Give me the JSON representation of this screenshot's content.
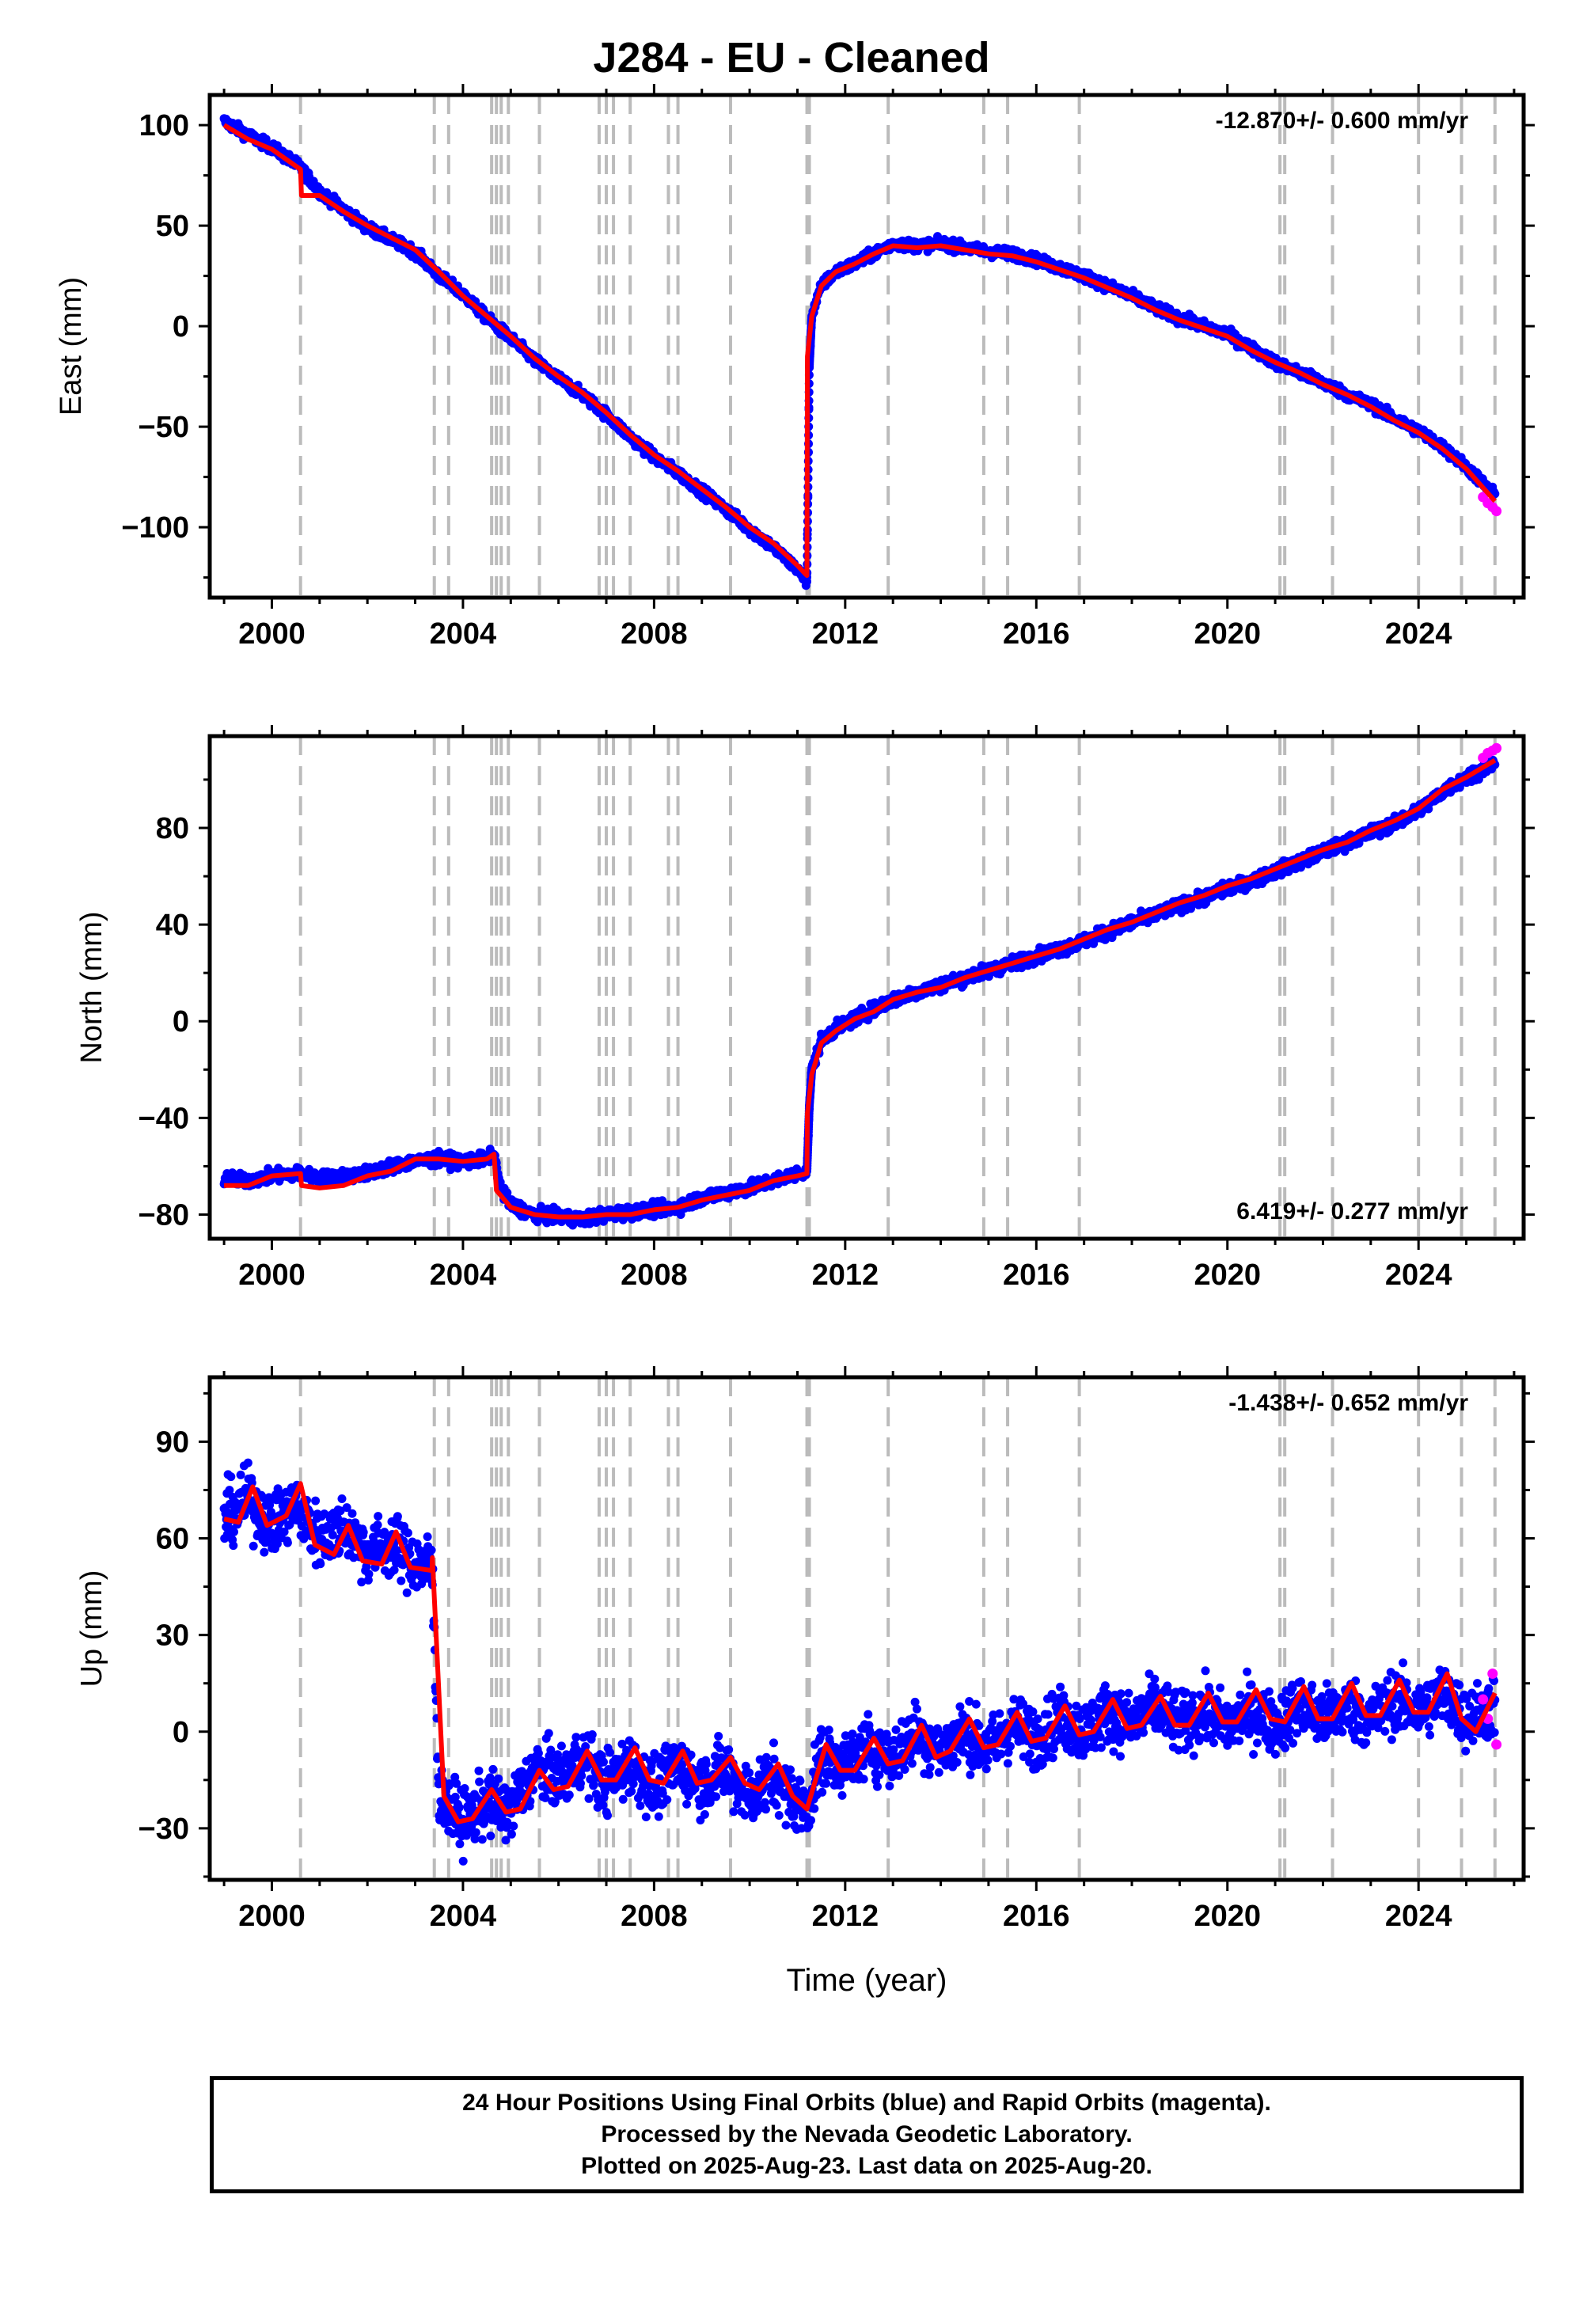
{
  "title": "J284  - EU - Cleaned",
  "xlabel": "Time (year)",
  "footer": {
    "line1": "24 Hour Positions Using Final Orbits (blue) and Rapid Orbits (magenta).",
    "line2": "Processed by the Nevada Geodetic Laboratory.",
    "line3": "Plotted on 2025-Aug-23. Last data on 2025-Aug-20."
  },
  "colors": {
    "final": "#0000ff",
    "rapid": "#ff00ff",
    "model": "#ff0000",
    "event_lines": "#bbbbbb"
  },
  "event_lines_years": [
    2000.6,
    2003.4,
    2003.7,
    2004.6,
    2004.7,
    2004.8,
    2004.95,
    2005.6,
    2006.85,
    2007.0,
    2007.15,
    2007.5,
    2008.3,
    2008.5,
    2009.6,
    2011.2,
    2011.25,
    2012.9,
    2014.9,
    2015.4,
    2016.9,
    2021.1,
    2021.2,
    2022.2,
    2024.0,
    2024.9,
    2025.6
  ],
  "chart_data": [
    {
      "type": "scatter",
      "component": "east",
      "ylabel": "East (mm)",
      "rate_label": "-12.870+/- 0.600 mm/yr",
      "rate_position": "top-right",
      "xlim": [
        1998.7,
        2026.2
      ],
      "ylim": [
        -135,
        115
      ],
      "xticks": [
        2000,
        2004,
        2008,
        2012,
        2016,
        2020,
        2024
      ],
      "yticks": [
        100,
        50,
        0,
        -50,
        -100
      ],
      "xtick_labels": [
        "2000",
        "2004",
        "2008",
        "2012",
        "2016",
        "2020",
        "2024"
      ],
      "ytick_labels": [
        "100",
        "50",
        "0",
        "−50",
        "−100"
      ],
      "noise_mm": 2.5,
      "series": [
        {
          "name": "Final Orbits",
          "color": "#0000ff",
          "x": [
            1999.0,
            1999.5,
            2000.0,
            2000.6,
            2001.0,
            2001.5,
            2002.0,
            2002.5,
            2003.0,
            2003.5,
            2004.0,
            2004.5,
            2005.0,
            2005.5,
            2006.0,
            2006.5,
            2007.0,
            2007.5,
            2008.0,
            2008.5,
            2009.0,
            2009.5,
            2010.0,
            2010.5,
            2011.0,
            2011.2,
            2011.25,
            2011.3,
            2011.5,
            2011.8,
            2012.2,
            2012.6,
            2013.0,
            2013.5,
            2014.0,
            2014.5,
            2015.0,
            2015.5,
            2016.0,
            2016.5,
            2017.0,
            2017.5,
            2018.0,
            2018.5,
            2019.0,
            2019.5,
            2020.0,
            2020.5,
            2021.0,
            2021.5,
            2022.0,
            2022.5,
            2023.0,
            2023.5,
            2024.0,
            2024.5,
            2025.0,
            2025.6
          ],
          "y": [
            102,
            95,
            89,
            79,
            67,
            58,
            49,
            43,
            37,
            25,
            16,
            4,
            -6,
            -17,
            -26,
            -34,
            -44,
            -55,
            -65,
            -73,
            -82,
            -91,
            -101,
            -110,
            -121,
            -127,
            -20,
            5,
            20,
            27,
            31,
            36,
            41,
            40,
            41,
            39,
            37,
            36,
            33,
            29,
            25,
            20,
            15,
            9,
            4,
            0,
            -4,
            -11,
            -18,
            -23,
            -28,
            -34,
            -39,
            -46,
            -52,
            -60,
            -70,
            -84
          ]
        },
        {
          "name": "Rapid Orbits",
          "color": "#ff00ff",
          "x": [
            2025.35,
            2025.45,
            2025.55,
            2025.63
          ],
          "y": [
            -85,
            -88,
            -90,
            -92
          ]
        },
        {
          "name": "Model",
          "color": "#ff0000",
          "x": [
            1999.0,
            1999.5,
            2000.0,
            2000.6,
            2000.62,
            2001.0,
            2001.5,
            2002.0,
            2002.5,
            2003.0,
            2003.5,
            2004.0,
            2004.5,
            2005.0,
            2005.5,
            2006.0,
            2006.5,
            2007.0,
            2007.5,
            2008.0,
            2008.5,
            2009.0,
            2009.5,
            2010.0,
            2010.5,
            2011.0,
            2011.2,
            2011.21,
            2011.3,
            2011.5,
            2011.8,
            2012.2,
            2012.6,
            2013.0,
            2013.5,
            2014.0,
            2014.5,
            2015.0,
            2015.5,
            2016.0,
            2016.5,
            2017.0,
            2017.5,
            2018.0,
            2018.5,
            2019.0,
            2019.5,
            2020.0,
            2020.5,
            2021.0,
            2021.5,
            2022.0,
            2022.5,
            2023.0,
            2023.5,
            2024.0,
            2024.5,
            2025.0,
            2025.6
          ],
          "y": [
            100,
            93,
            88,
            78,
            65,
            65,
            57,
            50,
            44,
            38,
            27,
            15,
            5,
            -5,
            -16,
            -25,
            -33,
            -43,
            -54,
            -64,
            -72,
            -81,
            -90,
            -100,
            -108,
            -119,
            -124,
            -15,
            5,
            20,
            27,
            31,
            36,
            40,
            39,
            40,
            38,
            36,
            35,
            32,
            28,
            24,
            19,
            14,
            8,
            3,
            -1,
            -5,
            -12,
            -18,
            -23,
            -29,
            -34,
            -40,
            -47,
            -53,
            -61,
            -71,
            -87
          ]
        }
      ]
    },
    {
      "type": "scatter",
      "component": "north",
      "ylabel": "North (mm)",
      "rate_label": "6.419+/- 0.277 mm/yr",
      "rate_position": "bottom-right",
      "xlim": [
        1998.7,
        2026.2
      ],
      "ylim": [
        -90,
        118
      ],
      "xticks": [
        2000,
        2004,
        2008,
        2012,
        2016,
        2020,
        2024
      ],
      "yticks": [
        80,
        40,
        0,
        -40,
        -80
      ],
      "xtick_labels": [
        "2000",
        "2004",
        "2008",
        "2012",
        "2016",
        "2020",
        "2024"
      ],
      "ytick_labels": [
        "80",
        "40",
        "0",
        "−40",
        "−80"
      ],
      "noise_mm": 2.5,
      "series": [
        {
          "name": "Final Orbits",
          "color": "#0000ff",
          "x": [
            1999.0,
            1999.5,
            2000.0,
            2000.6,
            2001.0,
            2001.5,
            2002.0,
            2002.5,
            2003.0,
            2003.5,
            2004.0,
            2004.5,
            2004.65,
            2004.8,
            2005.0,
            2005.5,
            2006.0,
            2006.5,
            2007.0,
            2007.5,
            2008.0,
            2008.5,
            2009.0,
            2009.5,
            2010.0,
            2010.5,
            2011.0,
            2011.2,
            2011.25,
            2011.3,
            2011.5,
            2011.8,
            2012.2,
            2012.6,
            2013.0,
            2013.5,
            2014.0,
            2014.5,
            2015.0,
            2015.5,
            2016.0,
            2016.5,
            2017.0,
            2017.5,
            2018.0,
            2018.5,
            2019.0,
            2019.5,
            2020.0,
            2020.5,
            2021.0,
            2021.5,
            2022.0,
            2022.5,
            2023.0,
            2023.5,
            2024.0,
            2024.5,
            2025.0,
            2025.6
          ],
          "y": [
            -65,
            -66,
            -64,
            -63,
            -65,
            -64,
            -63,
            -60,
            -58,
            -57,
            -58,
            -57,
            -55,
            -70,
            -76,
            -80,
            -81,
            -82,
            -80,
            -79,
            -78,
            -77,
            -73,
            -71,
            -69,
            -66,
            -63,
            -62,
            -35,
            -20,
            -8,
            -3,
            1,
            5,
            9,
            12,
            15,
            18,
            21,
            24,
            27,
            30,
            33,
            37,
            41,
            44,
            48,
            51,
            55,
            58,
            62,
            66,
            70,
            74,
            78,
            82,
            87,
            95,
            101,
            107
          ]
        },
        {
          "name": "Rapid Orbits",
          "color": "#ff00ff",
          "x": [
            2025.35,
            2025.45,
            2025.55,
            2025.63
          ],
          "y": [
            109,
            111,
            112,
            113
          ]
        },
        {
          "name": "Model",
          "color": "#ff0000",
          "x": [
            1999.0,
            1999.5,
            2000.0,
            2000.6,
            2000.62,
            2001.0,
            2001.5,
            2002.0,
            2002.5,
            2003.0,
            2003.5,
            2004.0,
            2004.5,
            2004.65,
            2004.7,
            2005.0,
            2005.5,
            2006.0,
            2006.5,
            2007.0,
            2007.5,
            2008.0,
            2008.5,
            2009.0,
            2009.5,
            2010.0,
            2010.5,
            2011.0,
            2011.2,
            2011.21,
            2011.3,
            2011.5,
            2011.8,
            2012.2,
            2012.6,
            2013.0,
            2013.5,
            2014.0,
            2014.5,
            2015.0,
            2015.5,
            2016.0,
            2016.5,
            2017.0,
            2017.5,
            2018.0,
            2018.5,
            2019.0,
            2019.5,
            2020.0,
            2020.5,
            2021.0,
            2021.5,
            2022.0,
            2022.5,
            2023.0,
            2023.5,
            2024.0,
            2024.5,
            2025.0,
            2025.6
          ],
          "y": [
            -68,
            -68,
            -64,
            -63,
            -68,
            -69,
            -68,
            -64,
            -62,
            -57,
            -57,
            -58,
            -57,
            -55,
            -70,
            -77,
            -80,
            -81,
            -81,
            -80,
            -80,
            -78,
            -77,
            -74,
            -72,
            -70,
            -66,
            -64,
            -63,
            -38,
            -22,
            -9,
            -4,
            1,
            4,
            9,
            12,
            14,
            18,
            21,
            24,
            27,
            30,
            34,
            38,
            41,
            45,
            49,
            52,
            56,
            59,
            63,
            67,
            71,
            74,
            79,
            83,
            88,
            96,
            101,
            108
          ]
        }
      ]
    },
    {
      "type": "scatter",
      "component": "up",
      "ylabel": "Up (mm)",
      "rate_label": "-1.438+/- 0.652 mm/yr",
      "rate_position": "top-right",
      "xlim": [
        1998.7,
        2026.2
      ],
      "ylim": [
        -46,
        110
      ],
      "xticks": [
        2000,
        2004,
        2008,
        2012,
        2016,
        2020,
        2024
      ],
      "yticks": [
        90,
        60,
        30,
        0,
        -30
      ],
      "xtick_labels": [
        "2000",
        "2004",
        "2008",
        "2012",
        "2016",
        "2020",
        "2024"
      ],
      "ytick_labels": [
        "90",
        "60",
        "30",
        "0",
        "−30"
      ],
      "noise_mm": 9,
      "series": [
        {
          "name": "Final Orbits",
          "color": "#0000ff",
          "x": [
            1999.0,
            1999.5,
            2000.0,
            2000.5,
            2001.0,
            2001.5,
            2002.0,
            2002.5,
            2003.0,
            2003.35,
            2003.5,
            2004.0,
            2004.5,
            2005.0,
            2005.5,
            2006.0,
            2006.5,
            2007.0,
            2007.5,
            2008.0,
            2008.5,
            2009.0,
            2009.5,
            2010.0,
            2010.5,
            2011.0,
            2011.2,
            2011.5,
            2012.0,
            2012.5,
            2013.0,
            2013.5,
            2014.0,
            2014.5,
            2015.0,
            2015.5,
            2016.0,
            2016.5,
            2017.0,
            2017.5,
            2018.0,
            2018.5,
            2019.0,
            2019.5,
            2020.0,
            2020.5,
            2021.0,
            2021.5,
            2022.0,
            2022.5,
            2023.0,
            2023.5,
            2024.0,
            2024.5,
            2025.0,
            2025.6
          ],
          "y": [
            66,
            72,
            64,
            70,
            60,
            64,
            56,
            58,
            52,
            52,
            -20,
            -28,
            -22,
            -24,
            -12,
            -14,
            -8,
            -16,
            -10,
            -18,
            -10,
            -16,
            -12,
            -20,
            -14,
            -22,
            -24,
            -8,
            -10,
            -4,
            -8,
            0,
            -6,
            0,
            -6,
            2,
            -2,
            4,
            0,
            6,
            2,
            8,
            2,
            6,
            2,
            6,
            2,
            8,
            4,
            8,
            4,
            10,
            6,
            12,
            4,
            8
          ]
        },
        {
          "name": "Rapid Orbits",
          "color": "#ff00ff",
          "x": [
            2025.35,
            2025.45,
            2025.55,
            2025.63
          ],
          "y": [
            10,
            4,
            18,
            -4
          ]
        },
        {
          "name": "Model",
          "color": "#ff0000",
          "x": [
            1999.0,
            1999.3,
            1999.6,
            1999.9,
            2000.3,
            2000.6,
            2000.9,
            2001.3,
            2001.6,
            2001.9,
            2002.3,
            2002.6,
            2002.9,
            2003.35,
            2003.36,
            2003.6,
            2003.9,
            2004.2,
            2004.6,
            2004.9,
            2005.2,
            2005.6,
            2005.9,
            2006.2,
            2006.6,
            2006.9,
            2007.2,
            2007.6,
            2007.9,
            2008.2,
            2008.6,
            2008.9,
            2009.2,
            2009.6,
            2009.9,
            2010.2,
            2010.6,
            2010.9,
            2011.2,
            2011.6,
            2011.9,
            2012.2,
            2012.6,
            2012.9,
            2013.2,
            2013.6,
            2013.9,
            2014.2,
            2014.6,
            2014.9,
            2015.2,
            2015.6,
            2015.9,
            2016.2,
            2016.6,
            2016.9,
            2017.2,
            2017.6,
            2017.9,
            2018.2,
            2018.6,
            2018.9,
            2019.2,
            2019.6,
            2019.9,
            2020.2,
            2020.6,
            2020.9,
            2021.2,
            2021.6,
            2021.9,
            2022.2,
            2022.6,
            2022.9,
            2023.2,
            2023.6,
            2023.9,
            2024.2,
            2024.6,
            2024.9,
            2025.2,
            2025.6
          ],
          "y": [
            66,
            65,
            76,
            64,
            67,
            77,
            58,
            55,
            64,
            53,
            52,
            62,
            51,
            50,
            54,
            -20,
            -28,
            -27,
            -18,
            -25,
            -24,
            -12,
            -18,
            -17,
            -6,
            -15,
            -15,
            -5,
            -15,
            -16,
            -6,
            -16,
            -15,
            -8,
            -16,
            -18,
            -10,
            -20,
            -24,
            -4,
            -12,
            -12,
            -2,
            -10,
            -9,
            2,
            -8,
            -6,
            4,
            -5,
            -4,
            6,
            -3,
            -2,
            8,
            -1,
            0,
            10,
            1,
            2,
            11,
            2,
            2,
            12,
            3,
            3,
            13,
            4,
            3,
            14,
            4,
            4,
            15,
            5,
            5,
            16,
            6,
            6,
            18,
            4,
            0,
            12
          ]
        }
      ]
    }
  ]
}
